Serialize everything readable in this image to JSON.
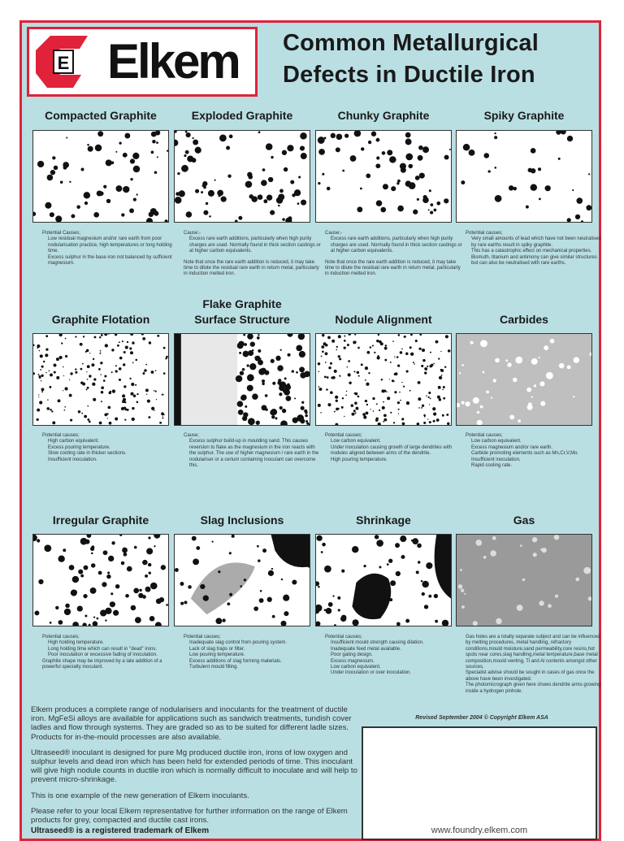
{
  "header": {
    "brand": "Elkem",
    "logo_letter": "E",
    "title_line1": "Common Metallurgical",
    "title_line2": "Defects in Ductile Iron"
  },
  "colors": {
    "border": "#e0223a",
    "background": "#b9dfe3",
    "text": "#222222"
  },
  "defects": [
    {
      "title": [
        "Compacted Graphite"
      ],
      "heading": "Potential Causes;",
      "items": [
        "Low residual magnesium and/or rare earth from poor nodularisation practice, high temperatures or long holding time.",
        "Excess sulphur in the base iron not balanced by sufficient magnesium."
      ],
      "after": []
    },
    {
      "title": [
        "Exploded Graphite"
      ],
      "heading": "Cause;-",
      "items": [
        "Excess rare earth additions, particularly when high purity charges are used. Normally found in thick section castings or at higher carbon equivalents."
      ],
      "after": [
        "Note that once the rare earth addition is reduced, it may take time to dilute the residual rare earth in return metal, particularly in induction melted iron."
      ]
    },
    {
      "title": [
        "Chunky Graphite"
      ],
      "heading": "Cause;-",
      "items": [
        "Excess rare earth additions, particularly when high purity charges are used. Normally found in thick section castings or at higher carbon equivalents."
      ],
      "after": [
        "Note that once the rare earth addition is reduced, it may take time to dilute the residual rare earth in return metal, particularly in induction melted iron."
      ]
    },
    {
      "title": [
        "Spiky Graphite"
      ],
      "heading": "Potential causes;",
      "items": [
        "Very small amounts of lead which have not been neutralised by rare earths result in spiky graphite.",
        "This has a catastrophic effect on mechanical properties.",
        "Bismuth, titanium and antimony can give similar structures but can also be neutralised with rare earths."
      ],
      "after": []
    },
    {
      "title": [
        "Graphite Flotation"
      ],
      "heading": "Potential causes;",
      "items": [
        "High carbon equivalent.",
        "Excess pouring temperature.",
        "Slow cooling rate in thicker sections.",
        "Insufficient inoculation."
      ],
      "after": []
    },
    {
      "title": [
        "Flake Graphite",
        "Surface Structure"
      ],
      "heading": "Cause;",
      "items": [
        "Excess sulphur build-up in moulding sand. This causes reversion to flake as the magnesium in the iron reacts with the sulphur. The use of higher magnesium / rare earth in the nodulariser or a cerium containing inoculant can overcome this."
      ],
      "after": []
    },
    {
      "title": [
        "Nodule Alignment"
      ],
      "heading": "Potential causes;",
      "items": [
        "Low carbon equivalent.",
        "Under inoculation causing growth of large dendrites with nodules aligned between arms of the dendrite.",
        "High pouring temperature."
      ],
      "after": []
    },
    {
      "title": [
        "Carbides"
      ],
      "heading": "Potential causes;",
      "items": [
        "Low carbon equivalent.",
        "Excess magnesium and/or rare earth.",
        "Carbide promoting elements such as Mn,Cr,V,Mo.",
        "Insufficient inoculation.",
        "Rapid cooling rate."
      ],
      "after": []
    },
    {
      "title": [
        "Irregular Graphite"
      ],
      "heading": "Potential causes;",
      "items": [
        "High holding temperature.",
        "Long holding time which can result in \"dead\" irons.",
        "Poor inoculation or excessive fading of inoculation."
      ],
      "after": [
        "Graphite shape may be improved by a late addition of a powerful specialty inoculant."
      ]
    },
    {
      "title": [
        "Slag Inclusions"
      ],
      "heading": "Potential causes;",
      "items": [
        "Inadequate slag control from pouring system.",
        "Lack of slag traps or filter.",
        "Low pouring temperature.",
        "Excess additions of slag forming materials.",
        "Turbulent mould filling."
      ],
      "after": []
    },
    {
      "title": [
        "Shrinkage"
      ],
      "heading": "Potential causes;",
      "items": [
        "Insufficient mould strength causing dilation.",
        "Inadequate feed metal available.",
        "Poor gating design.",
        "Excess magnesium.",
        "Low carbon equivalent.",
        "Under inoculation or over inoculation."
      ],
      "after": []
    },
    {
      "title": [
        "Gas"
      ],
      "heading": "",
      "items": [],
      "after": [
        "Gas holes are a totally separate subject and can be influenced by melting procedures, metal handling, refractory conditions,mould moisture,sand permeability,core resins,hot spots near cores,slag handling,metal temperature,base metal composition,mould venting, Ti and Al contents amongst other sources.",
        "Specialist advise should be sought in cases of gas once the above have been investigated.",
        "The photomicrograph given here shows dendrite arms growing inside a hydrogen pinhole."
      ]
    }
  ],
  "body_paragraphs": [
    "Elkem produces a complete range of nodularisers and inoculants for the treatment of ductile iron. MgFeSi alloys are available for applications such as sandwich treatments, tundish cover ladles and flow through systems. They are graded so as to be suited for different ladle sizes. Products for in-the-mould processes are also available.",
    "Ultraseed® inoculant is designed for pure Mg produced ductile iron, irons of low oxygen and sulphur levels and dead iron which has been held for extended periods of time. This inoculant will give high nodule counts in ductile iron which is normally difficult to inoculate and will help to prevent micro-shrinkage.",
    "This is one example of the new generation of Elkem inoculants.",
    "Please refer to your local Elkem representative for further information on the range of Elkem products for grey, compacted and ductile cast irons."
  ],
  "footer_note": "Ultraseed® is a registered trademark of Elkem",
  "revised": "Revised September 2004 © Copyright Elkem ASA",
  "website": "www.foundry.elkem.com"
}
